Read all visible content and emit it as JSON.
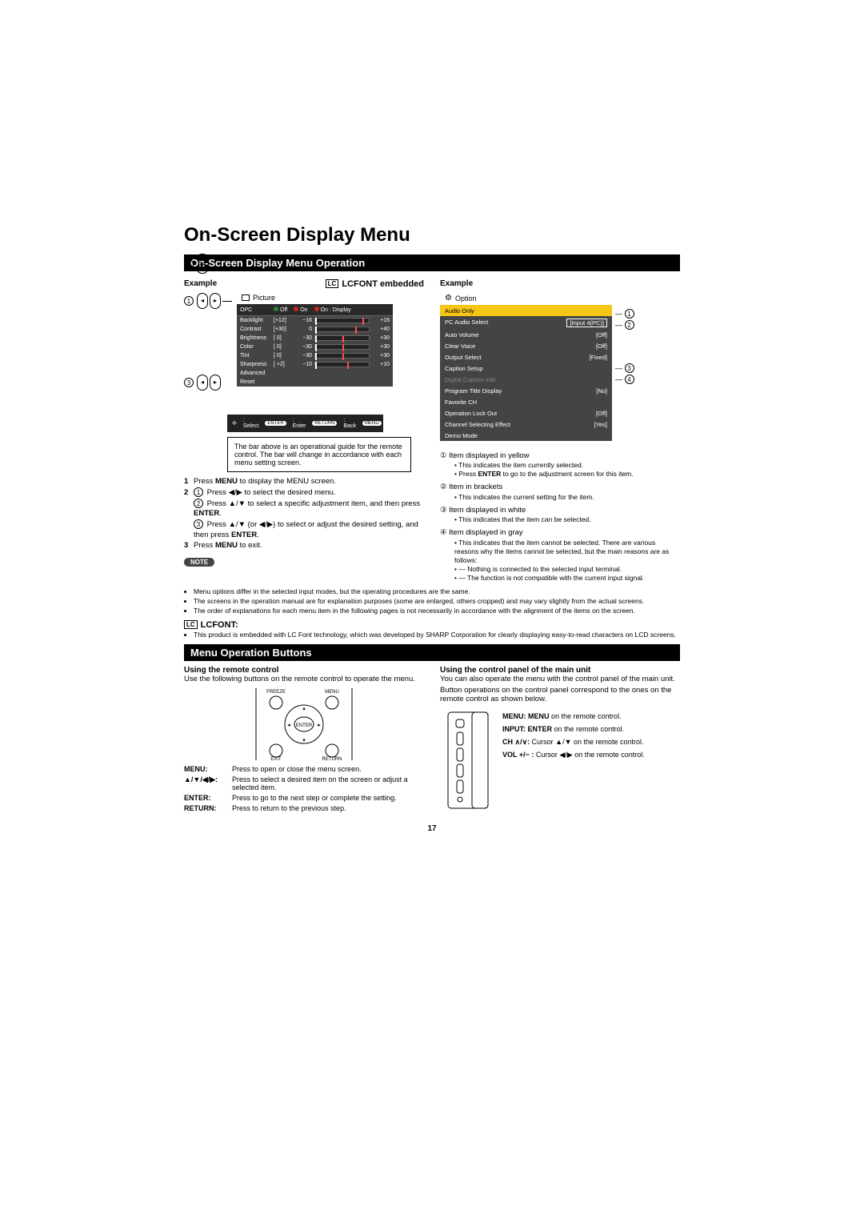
{
  "title": "On-Screen Display Menu",
  "section1": "On-Screen Display Menu Operation",
  "example": "Example",
  "lcfont_embedded": "LCFONT embedded",
  "lc_icon": "LC",
  "picture": {
    "header": "Picture",
    "opc": {
      "label": "OPC",
      "off": "Off",
      "on": "On",
      "on_display": "On : Display"
    },
    "rows": [
      {
        "label": "Backlight",
        "val": "[+12]",
        "min": "−16",
        "max": "+16",
        "pos": 88
      },
      {
        "label": "Contrast",
        "val": "[+30]",
        "min": "0",
        "max": "+40",
        "pos": 75
      },
      {
        "label": "Brightness",
        "val": "[   0]",
        "min": "−30",
        "max": "+30",
        "pos": 50
      },
      {
        "label": "Color",
        "val": "[   0]",
        "min": "−30",
        "max": "+30",
        "pos": 50
      },
      {
        "label": "Tint",
        "val": "[   0]",
        "min": "−30",
        "max": "+30",
        "pos": 50
      },
      {
        "label": "Sharpness",
        "val": "[ +2]",
        "min": "−10",
        "max": "+10",
        "pos": 60
      }
    ],
    "advanced": "Advanced",
    "reset": "Reset"
  },
  "guide_bar": {
    "select": ": Select",
    "enter": ": Enter",
    "back": ": Back",
    "exit": ": Exit"
  },
  "callout_text": "The bar above is an operational guide for the remote control. The bar will change in accordance with each menu setting screen.",
  "steps": {
    "s1": "Press <b>MENU</b> to display the MENU screen.",
    "s2a": "Press ◀/▶ to select the desired menu.",
    "s2b": "Press ▲/▼ to select a specific adjustment item, and then press <b>ENTER</b>.",
    "s2c": "Press ▲/▼ (or ◀/▶) to select or adjust the desired setting, and then press <b>ENTER</b>.",
    "s3": "Press <b>MENU</b> to exit."
  },
  "option": {
    "header": "Option",
    "rows": [
      {
        "label": "Audio Only",
        "val": "",
        "cls": "sel"
      },
      {
        "label": "PC Audio Select",
        "val": "[Input 4(PC)]",
        "cls": "box"
      },
      {
        "label": "Auto Volume",
        "val": "[Off]"
      },
      {
        "label": "Clear Voice",
        "val": "[Off]"
      },
      {
        "label": "Output Select",
        "val": "[Fixed]"
      },
      {
        "label": "Caption Setup",
        "val": ""
      },
      {
        "label": "Digital Caption Info.",
        "val": "",
        "cls": "gray"
      },
      {
        "label": "Program Title Display",
        "val": "[No]"
      },
      {
        "label": "Favorite CH",
        "val": ""
      },
      {
        "label": "Operation Lock Out",
        "val": "[Off]"
      },
      {
        "label": "Channel Selecting Effect",
        "val": "[Yes]"
      },
      {
        "label": "Demo Mode",
        "val": ""
      }
    ]
  },
  "legend": [
    {
      "n": "①",
      "title": "Item displayed in yellow",
      "subs": [
        "This indicates the item currently selected.",
        "Press <b>ENTER</b> to go to the adjustment screen for this item."
      ]
    },
    {
      "n": "②",
      "title": "Item in brackets",
      "subs": [
        "This indicates the current setting for the item."
      ]
    },
    {
      "n": "③",
      "title": "Item displayed in white",
      "subs": [
        "This indicates that the item can be selected."
      ]
    },
    {
      "n": "④",
      "title": "Item displayed in gray",
      "subs": [
        "This indicates that the item cannot be selected. There are various reasons why the items cannot be selected, but the main reasons are as follows:",
        "— Nothing is connected to the selected input terminal.",
        "— The function is not compatible with the current input signal."
      ]
    }
  ],
  "note_label": "NOTE",
  "notes": [
    "Menu options differ in the selected input modes, but the operating procedures are the same.",
    "The screens in the operation manual are for explanation purposes (some are enlarged, others cropped) and may vary slightly from the actual screens.",
    "The order of explanations for each menu item in the following pages is not necessarily in accordance with the alignment of the items on the screen."
  ],
  "lcfont_section": "LCFONT:",
  "lcfont_note": "This product is embedded with LC Font technology, which was developed by SHARP Corporation for clearly displaying easy-to-read characters on LCD screens.",
  "section2": "Menu Operation Buttons",
  "remote": {
    "title": "Using the remote control",
    "intro": "Use the following buttons on the remote control to operate the menu.",
    "labels": {
      "freeze": "FREEZE",
      "menu": "MENU",
      "enter": "ENTER",
      "exit": "EXIT",
      "return": "RETURN"
    },
    "table": [
      {
        "lbl": "MENU:",
        "desc": "Press to open or close the menu screen."
      },
      {
        "lbl": "▲/▼/◀/▶:",
        "desc": "Press to select a desired item on the screen or adjust a selected item."
      },
      {
        "lbl": "ENTER:",
        "desc": "Press to go to the next step or complete the setting."
      },
      {
        "lbl": "RETURN:",
        "desc": "Press to return to the previous step."
      }
    ]
  },
  "unit": {
    "title": "Using the control panel of the main unit",
    "intro1": "You can also operate the menu with the control panel of the main unit.",
    "intro2": "Button operations on the control panel correspond to the ones on the remote control as shown below.",
    "items": [
      {
        "lbl": "MENU:",
        "desc": "<b>MENU</b> on the remote control."
      },
      {
        "lbl": "INPUT:",
        "desc": "<b>ENTER</b> on the remote control."
      },
      {
        "lbl": "CH ∧/∨:",
        "desc": "Cursor ▲/▼ on the remote control."
      },
      {
        "lbl": "VOL +/− :",
        "desc": "Cursor ◀/▶ on the remote control."
      }
    ]
  },
  "page": "17",
  "colors": {
    "panel_bg": "#444444",
    "sel_bg": "#f5c518",
    "gray_text": "#888888"
  }
}
